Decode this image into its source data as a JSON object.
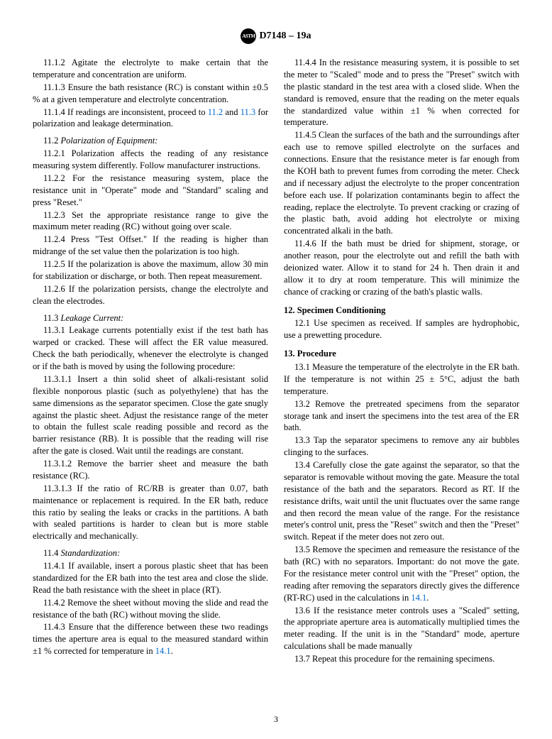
{
  "header": {
    "designation": "D7148 – 19a",
    "logo_text": "ASTM"
  },
  "footer": {
    "page_number": "3"
  },
  "link_color": "#0066cc",
  "left": {
    "p1": "11.1.2 Agitate the electrolyte to make certain that the temperature and concentration are uniform.",
    "p2": "11.1.3 Ensure the bath resistance (RC) is constant within ±0.5 % at a given temperature and electrolyte concentration.",
    "p3a": "11.1.4 If readings are inconsistent, proceed to ",
    "p3link1": "11.2",
    "p3b": " and ",
    "p3link2": "11.3",
    "p3c": " for polarization and leakage determination.",
    "sh1_num": "11.2 ",
    "sh1_title": "Polarization of Equipment:",
    "p4": "11.2.1 Polarization affects the reading of any resistance measuring system differently. Follow manufacturer instructions.",
    "p5": "11.2.2 For the resistance measuring system, place the resistance unit in \"Operate\" mode and \"Standard\" scaling and press \"Reset.\"",
    "p6": "11.2.3 Set the appropriate resistance range to give the maximum meter reading (RC) without going over scale.",
    "p7": "11.2.4 Press \"Test Offset.\" If the reading is higher than midrange of the set value then the polarization is too high.",
    "p8": "11.2.5 If the polarization is above the maximum, allow 30 min for stabilization or discharge, or both. Then repeat measurement.",
    "p9": "11.2.6 If the polarization persists, change the electrolyte and clean the electrodes.",
    "sh2_num": "11.3 ",
    "sh2_title": "Leakage Current:",
    "p10": "11.3.1 Leakage currents potentially exist if the test bath has warped or cracked. These will affect the ER value measured. Check the bath periodically, whenever the electrolyte is changed or if the bath is moved by using the following procedure:",
    "p11": "11.3.1.1 Insert a thin solid sheet of alkali-resistant solid flexible nonporous plastic (such as polyethylene) that has the same dimensions as the separator specimen. Close the gate snugly against the plastic sheet. Adjust the resistance range of the meter to obtain the fullest scale reading possible and record as the barrier resistance (RB). It is possible that the reading will rise after the gate is closed. Wait until the readings are constant.",
    "p12": "11.3.1.2 Remove the barrier sheet and measure the bath resistance (RC).",
    "p13": "11.3.1.3 If the ratio of RC/RB is greater than 0.07, bath maintenance or replacement is required. In the ER bath, reduce this ratio by sealing the leaks or cracks in the partitions. A bath with sealed partitions is harder to clean but is more stable electrically and mechanically.",
    "sh3_num": "11.4 ",
    "sh3_title": "Standardization:",
    "p14": "11.4.1 If available, insert a porous plastic sheet that has been standardized for the ER bath into the test area and close the slide. Read the bath resistance with the sheet in place (RT).",
    "p15": "11.4.2 Remove the sheet without moving the slide and read the resistance of the bath (RC) without moving the slide.",
    "p16a": "11.4.3 Ensure that the difference between these two readings times the aperture area is equal to the measured standard within ±1 % corrected for temperature in ",
    "p16link": "14.1",
    "p16b": "."
  },
  "right": {
    "p1": "11.4.4 In the resistance measuring system, it is possible to set the meter to \"Scaled\" mode and to press the \"Preset\" switch with the plastic standard in the test area with a closed slide. When the standard is removed, ensure that the reading on the meter equals the standardized value within ±1 % when corrected for temperature.",
    "p2": "11.4.5 Clean the surfaces of the bath and the surroundings after each use to remove spilled electrolyte on the surfaces and connections. Ensure that the resistance meter is far enough from the KOH bath to prevent fumes from corroding the meter. Check and if necessary adjust the electrolyte to the proper concentration before each use. If polarization contaminants begin to affect the reading, replace the electrolyte. To prevent cracking or crazing of the plastic bath, avoid adding hot electrolyte or mixing concentrated alkali in the bath.",
    "p3": "11.4.6 If the bath must be dried for shipment, storage, or another reason, pour the electrolyte out and refill the bath with deionized water. Allow it to stand for 24 h. Then drain it and allow it to dry at room temperature. This will minimize the chance of cracking or crazing of the bath's plastic walls.",
    "sec12": "12. Specimen Conditioning",
    "p4": "12.1 Use specimen as received. If samples are hydrophobic, use a prewetting procedure.",
    "sec13": "13. Procedure",
    "p5": "13.1 Measure the temperature of the electrolyte in the ER bath. If the temperature is not within 25 ± 5°C, adjust the bath temperature.",
    "p6": "13.2 Remove the pretreated specimens from the separator storage tank and insert the specimens into the test area of the ER bath.",
    "p7": "13.3 Tap the separator specimens to remove any air bubbles clinging to the surfaces.",
    "p8": "13.4 Carefully close the gate against the separator, so that the separator is removable without moving the gate. Measure the total resistance of the bath and the separators. Record as RT. If the resistance drifts, wait until the unit fluctuates over the same range and then record the mean value of the range. For the resistance meter's control unit, press the \"Reset\" switch and then the \"Preset\" switch. Repeat if the meter does not zero out.",
    "p9a": "13.5 Remove the specimen and remeasure the resistance of the bath (RC) with no separators. Important: do not move the gate. For the resistance meter control unit with the \"Preset\" option, the reading after removing the separators directly gives the difference (RT-RC) used in the calculations in ",
    "p9link": "14.1",
    "p9b": ".",
    "p10": "13.6 If the resistance meter controls uses a \"Scaled\" setting, the appropriate aperture area is automatically multiplied times the meter reading. If the unit is in the \"Standard\" mode, aperture calculations shall be made manually",
    "p11": "13.7 Repeat this procedure for the remaining specimens."
  }
}
